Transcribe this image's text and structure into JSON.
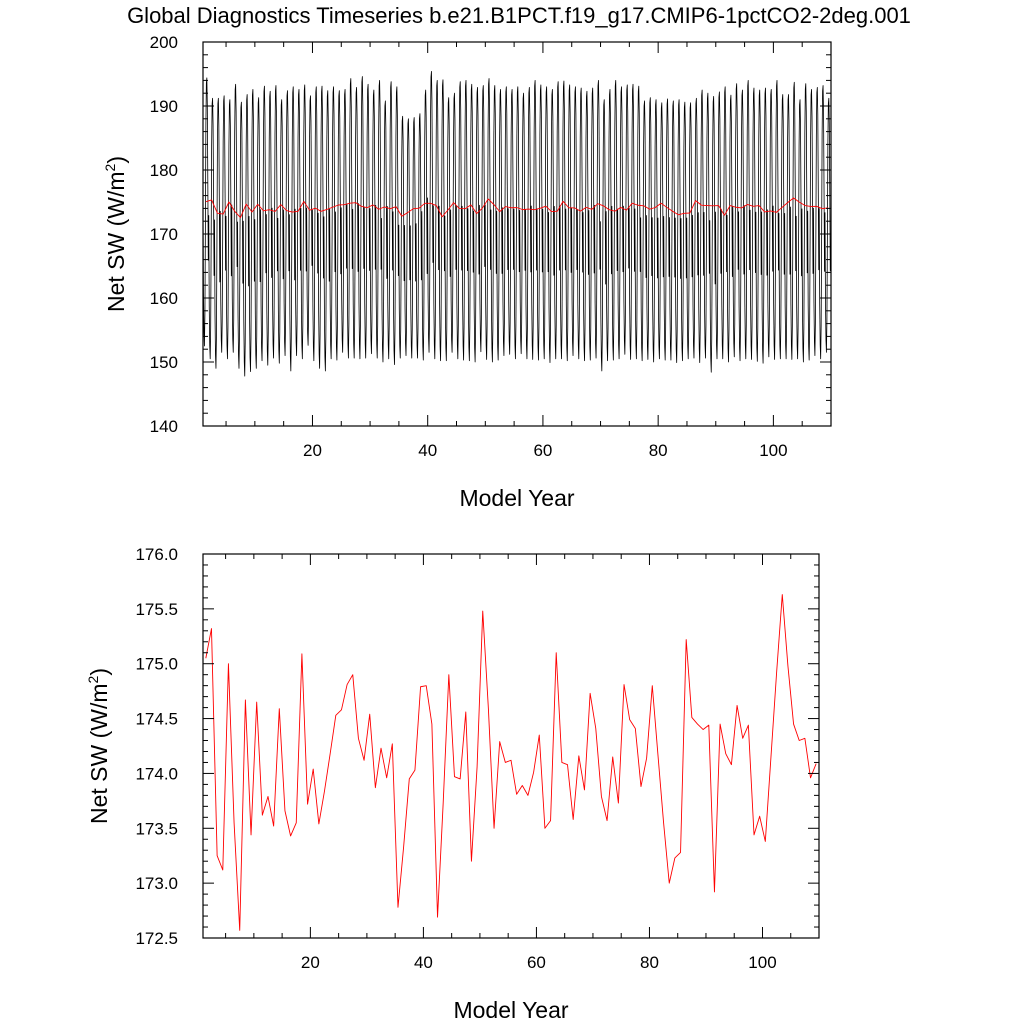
{
  "title": "Global Diagnostics Timeseries b.e21.B1PCT.f19_g17.CMIP6-1pctCO2-2deg.001",
  "colors": {
    "monthly": "#000000",
    "annual": "#ff0000",
    "axes": "#000000"
  },
  "chart_data": [
    {
      "type": "line",
      "xlabel": "Model Year",
      "ylabel_main": "Net SW (W/m",
      "ylabel_sup": "2",
      "ylabel_close": ")",
      "xlim": [
        1,
        110
      ],
      "ylim": [
        140,
        200
      ],
      "xticks": [
        20,
        40,
        60,
        80,
        100
      ],
      "yticks": [
        140,
        150,
        160,
        170,
        180,
        190,
        200
      ],
      "grid": false,
      "series": [
        {
          "style": "monthly",
          "x_start": 1.0,
          "x_step": 0.0833,
          "seasonal_max": [
            194.4,
            191.2,
            191.2,
            191.6,
            191.0,
            193.4,
            190.6,
            191.8,
            192.6,
            191.3,
            193.1,
            192.3,
            193.2,
            191.0,
            192.4,
            193.0,
            192.6,
            193.3,
            191.6,
            193.0,
            193.1,
            192.4,
            193.0,
            192.4,
            192.6,
            194.3,
            192.9,
            194.6,
            193.4,
            192.5,
            194.0,
            190.8,
            193.8,
            193.0,
            188.4,
            188.0,
            188.2,
            188.8,
            192.5,
            195.4,
            194.0,
            194.1,
            191.3,
            192.0,
            193.8,
            194.0,
            193.4,
            192.9,
            193.2,
            194.3,
            193.2,
            192.6,
            193.0,
            192.6,
            193.0,
            192.0,
            192.9,
            194.0,
            193.3,
            193.0,
            192.6,
            193.8,
            193.9,
            193.3,
            193.0,
            192.8,
            192.3,
            192.8,
            194.0,
            191.0,
            192.6,
            194.0,
            193.0,
            193.3,
            193.4,
            193.1,
            190.8,
            191.3,
            191.0,
            190.5,
            191.1,
            190.8,
            191.0,
            190.6,
            190.5,
            191.2,
            192.5,
            192.0,
            191.5,
            192.2,
            193.0,
            191.7,
            193.5,
            192.5,
            194.0,
            192.8,
            192.5,
            192.8,
            192.6,
            194.0,
            191.8,
            191.8,
            193.7,
            191.0,
            193.5,
            192.6,
            192.9,
            193.2,
            191.2
          ],
          "seasonal_min": [
            152.5,
            150.5,
            149.0,
            151.5,
            150.5,
            151.5,
            149.0,
            147.8,
            148.5,
            149.0,
            150.2,
            149.5,
            150.6,
            149.8,
            151.0,
            148.6,
            151.0,
            150.5,
            152.6,
            150.2,
            149.0,
            148.6,
            150.5,
            150.3,
            151.5,
            150.6,
            150.6,
            150.5,
            150.6,
            151.3,
            150.6,
            150.0,
            150.5,
            149.6,
            150.6,
            151.0,
            150.6,
            150.6,
            150.3,
            151.5,
            150.5,
            150.2,
            150.2,
            151.5,
            150.5,
            150.3,
            150.2,
            150.0,
            151.6,
            150.4,
            150.0,
            150.3,
            151.0,
            151.2,
            150.5,
            151.3,
            150.5,
            150.4,
            150.3,
            150.5,
            149.9,
            150.5,
            150.5,
            150.2,
            151.0,
            150.5,
            150.2,
            150.3,
            150.6,
            148.6,
            150.2,
            150.3,
            150.5,
            151.2,
            150.4,
            150.5,
            150.2,
            150.4,
            150.0,
            150.5,
            150.3,
            150.3,
            149.9,
            150.2,
            150.5,
            150.6,
            149.9,
            150.6,
            148.4,
            150.5,
            150.5,
            150.0,
            150.8,
            150.2,
            150.5,
            150.4,
            150.1,
            149.8,
            150.8,
            150.4,
            150.5,
            150.5,
            150.4,
            150.5,
            150.0,
            150.3,
            151.0,
            150.5,
            151.5
          ]
        },
        {
          "style": "annual",
          "ref": "annual_means"
        }
      ]
    },
    {
      "type": "line",
      "xlabel": "Model Year",
      "ylabel_main": "Net SW (W/m",
      "ylabel_sup": "2",
      "ylabel_close": ")",
      "xlim": [
        1,
        110
      ],
      "ylim": [
        172.5,
        176.0
      ],
      "xticks": [
        20,
        40,
        60,
        80,
        100
      ],
      "yticks": [
        172.5,
        173.0,
        173.5,
        174.0,
        174.5,
        175.0,
        175.5,
        176.0
      ],
      "grid": false,
      "series": [
        {
          "style": "annual",
          "ref": "annual_means"
        }
      ]
    }
  ],
  "annual_means": {
    "x_start": 1.5,
    "x_step": 1,
    "values": [
      175.05,
      175.32,
      173.25,
      173.12,
      175.0,
      173.55,
      172.57,
      174.67,
      173.44,
      174.65,
      173.62,
      173.79,
      173.52,
      174.59,
      173.66,
      173.43,
      173.55,
      175.09,
      173.72,
      174.04,
      173.54,
      173.84,
      174.18,
      174.53,
      174.58,
      174.81,
      174.9,
      174.32,
      174.12,
      174.54,
      173.87,
      174.23,
      173.96,
      174.27,
      172.78,
      173.33,
      173.95,
      174.03,
      174.79,
      174.8,
      174.45,
      172.69,
      173.73,
      174.9,
      173.97,
      173.95,
      174.56,
      173.2,
      174.06,
      175.48,
      174.59,
      173.5,
      174.29,
      174.1,
      174.12,
      173.81,
      173.89,
      173.8,
      174.01,
      174.35,
      173.5,
      173.57,
      175.1,
      174.1,
      174.08,
      173.58,
      174.16,
      173.85,
      174.73,
      174.41,
      173.79,
      173.57,
      174.15,
      173.73,
      174.81,
      174.49,
      174.41,
      173.88,
      174.14,
      174.8,
      174.17,
      173.55,
      173.0,
      173.23,
      173.28,
      175.22,
      174.51,
      174.45,
      174.4,
      174.44,
      172.92,
      174.45,
      174.18,
      174.08,
      174.62,
      174.32,
      174.44,
      173.44,
      173.61,
      173.38,
      174.15,
      174.92,
      175.63,
      174.98,
      174.45,
      174.3,
      174.32,
      173.96,
      174.09
    ]
  }
}
